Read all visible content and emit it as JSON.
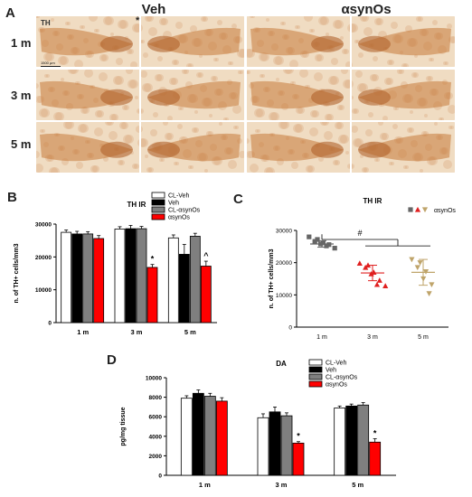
{
  "panel_a": {
    "letter": "A",
    "columns": [
      "Veh",
      "αsynOs"
    ],
    "rows": [
      "1 m",
      "3 m",
      "5 m"
    ],
    "stain_label": "TH",
    "scale_bar": "1500 µm",
    "asterisk": "*"
  },
  "panel_b": {
    "letter": "B"
  },
  "panel_c": {
    "letter": "C"
  },
  "panel_d": {
    "letter": "D"
  },
  "colors": {
    "cl_veh": "#ffffff",
    "veh": "#000000",
    "cl_asynos": "#7f7f7f",
    "asynos": "#ff0000",
    "tissue": "#e9c9a4",
    "tissue_dark": "#b5651d",
    "point_1m": "#666666",
    "point_3m": "#e02020",
    "point_5m": "#bfa46a"
  },
  "chart_data": [
    {
      "type": "bar",
      "title": "TH IR",
      "ylabel": "n. of TH+ cells/mm3",
      "categories": [
        "1 m",
        "3 m",
        "5 m"
      ],
      "ylim": [
        0,
        30000
      ],
      "yticks": [
        "0",
        "10000",
        "20000",
        "30000"
      ],
      "series": [
        {
          "name": "CL-Veh",
          "values": [
            27500,
            28500,
            25800
          ],
          "errors": [
            700,
            700,
            900
          ]
        },
        {
          "name": "Veh",
          "values": [
            27000,
            28600,
            20800
          ],
          "errors": [
            800,
            1000,
            3000
          ]
        },
        {
          "name": "CL-αsynOs",
          "values": [
            27000,
            28600,
            26300
          ],
          "errors": [
            700,
            700,
            900
          ]
        },
        {
          "name": "αsynOs",
          "values": [
            25600,
            16800,
            17200
          ],
          "errors": [
            900,
            900,
            1500
          ]
        }
      ],
      "annotations": [
        {
          "category": "3 m",
          "series": "αsynOs",
          "text": "*"
        },
        {
          "category": "5 m",
          "series": "αsynOs",
          "text": "^"
        }
      ],
      "legend": "top-right"
    },
    {
      "type": "scatter",
      "title": "TH IR",
      "ylabel": "n. of TH+ cells/mm3",
      "categories": [
        "1 m",
        "3 m",
        "5 m"
      ],
      "ylim": [
        0,
        30000
      ],
      "yticks": [
        "0",
        "10000",
        "20000",
        "30000"
      ],
      "legend_label": "αsynOs",
      "legend": "top-right",
      "significance": "#",
      "groups": [
        {
          "category": "1 m",
          "mean": 25800,
          "sd": 1000,
          "points": [
            28000,
            27200,
            26600,
            26200,
            25800,
            25600,
            25200,
            24500
          ]
        },
        {
          "category": "3 m",
          "mean": 16800,
          "sd": 2400,
          "points": [
            19800,
            19200,
            18500,
            17000,
            16500,
            14500,
            13200,
            12800
          ]
        },
        {
          "category": "5 m",
          "mean": 17000,
          "sd": 4000,
          "points": [
            21000,
            20000,
            18500,
            17200,
            15000,
            13200,
            10400
          ]
        }
      ]
    },
    {
      "type": "bar",
      "title": "DA",
      "ylabel": "pg/mg tissue",
      "categories": [
        "1 m",
        "3 m",
        "5 m"
      ],
      "ylim": [
        0,
        10000
      ],
      "yticks": [
        "0",
        "2000",
        "4000",
        "6000",
        "8000",
        "10000"
      ],
      "series": [
        {
          "name": "CL-Veh",
          "values": [
            7900,
            5900,
            6900
          ],
          "errors": [
            250,
            400,
            200
          ]
        },
        {
          "name": "Veh",
          "values": [
            8400,
            6500,
            7100
          ],
          "errors": [
            350,
            500,
            200
          ]
        },
        {
          "name": "CL-αsynOs",
          "values": [
            8100,
            6100,
            7200
          ],
          "errors": [
            300,
            300,
            250
          ]
        },
        {
          "name": "αsynOs",
          "values": [
            7600,
            3300,
            3400
          ],
          "errors": [
            350,
            150,
            350
          ]
        }
      ],
      "annotations": [
        {
          "category": "3 m",
          "series": "αsynOs",
          "text": "*"
        },
        {
          "category": "5 m",
          "series": "αsynOs",
          "text": "*"
        }
      ],
      "legend": "top-right"
    }
  ]
}
